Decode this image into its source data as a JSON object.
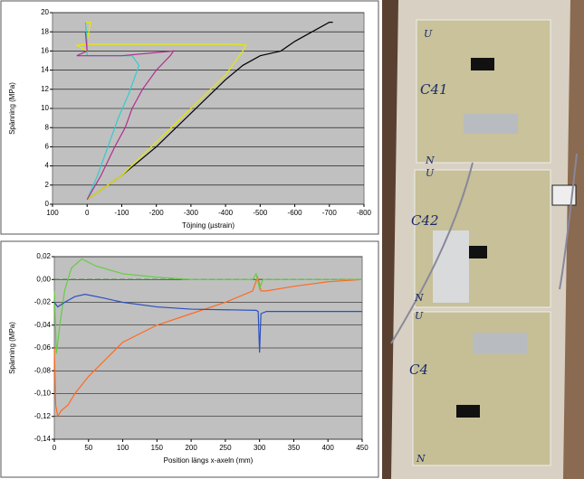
{
  "chart_data": [
    {
      "type": "line",
      "x_label": "Töjning (µstrain)",
      "y_label": "Spänning (MPa)",
      "xlim": [
        100,
        -800
      ],
      "xticks": [
        100,
        0,
        -100,
        -200,
        -300,
        -400,
        -500,
        -600,
        -700,
        -800
      ],
      "ylim": [
        0,
        20
      ],
      "yticks": [
        0,
        2,
        4,
        6,
        8,
        10,
        12,
        14,
        16,
        18,
        20
      ],
      "grid": true,
      "series": [
        {
          "color": "#000000",
          "x": [
            0,
            -100,
            -200,
            -300,
            -400,
            -450,
            -500,
            -560,
            -600,
            -650,
            -700,
            -710
          ],
          "values": [
            0.5,
            3,
            6,
            9.5,
            13,
            14.5,
            15.5,
            16,
            17,
            18,
            19,
            19
          ]
        },
        {
          "color": "#e8e800",
          "x": [
            0,
            -100,
            -200,
            -300,
            -400,
            -450,
            -460,
            -430,
            -200,
            0,
            30,
            0,
            0,
            -10,
            5
          ],
          "values": [
            0.5,
            3,
            6.5,
            10,
            13.5,
            16,
            16.6,
            16.7,
            16.7,
            16.7,
            16.6,
            16,
            17,
            19,
            19
          ]
        },
        {
          "color": "#33cccc",
          "x": [
            0,
            -30,
            -60,
            -90,
            -120,
            -140,
            -150,
            -130,
            -50,
            0,
            0,
            5
          ],
          "values": [
            0.5,
            3,
            6,
            9,
            11.5,
            13.5,
            14.5,
            15.5,
            15.5,
            15.5,
            17,
            19
          ]
        },
        {
          "color": "#b03090",
          "x": [
            0,
            -40,
            -80,
            -110,
            -130,
            -160,
            -200,
            -240,
            -250,
            -100,
            30,
            0,
            5
          ],
          "values": [
            0.5,
            3,
            6,
            8,
            10,
            12,
            14,
            15.5,
            16,
            15.5,
            15.5,
            16,
            18
          ]
        }
      ]
    },
    {
      "type": "line",
      "x_label": "Position längs x-axeln (mm)",
      "y_label": "Spänning (MPa)",
      "xlim": [
        0,
        450
      ],
      "xticks": [
        0,
        50,
        100,
        150,
        200,
        250,
        300,
        350,
        400,
        450
      ],
      "ylim": [
        -0.14,
        0.02
      ],
      "yticks": [
        {
          "value": -0.14,
          "label": "-0,14"
        },
        {
          "value": -0.12,
          "label": "-0,12"
        },
        {
          "value": -0.1,
          "label": "-0,10"
        },
        {
          "value": -0.08,
          "label": "-0,08"
        },
        {
          "value": -0.06,
          "label": "-0,06"
        },
        {
          "value": -0.04,
          "label": "-0,04"
        },
        {
          "value": -0.02,
          "label": "-0,02"
        },
        {
          "value": 0,
          "label": "0,00"
        },
        {
          "value": 0.02,
          "label": "0,02"
        }
      ],
      "grid": true,
      "series": [
        {
          "color": "#2e7d32",
          "dash": true,
          "x": [
            0,
            450
          ],
          "values": [
            0,
            0
          ]
        },
        {
          "color": "#ff6a20",
          "x": [
            0,
            2,
            5,
            10,
            20,
            30,
            50,
            75,
            100,
            150,
            200,
            250,
            290,
            297,
            300,
            302,
            310,
            350,
            400,
            450
          ],
          "values": [
            -0.06,
            -0.11,
            -0.12,
            -0.115,
            -0.11,
            -0.1,
            -0.085,
            -0.07,
            -0.055,
            -0.04,
            -0.03,
            -0.02,
            -0.01,
            0.002,
            -0.004,
            -0.01,
            -0.01,
            -0.006,
            -0.002,
            0
          ]
        },
        {
          "color": "#66cc44",
          "x": [
            0,
            3,
            8,
            15,
            25,
            40,
            60,
            100,
            150,
            200,
            290,
            295,
            300,
            305,
            450
          ],
          "values": [
            -0.01,
            -0.065,
            -0.04,
            -0.01,
            0.01,
            0.018,
            0.012,
            0.005,
            0.002,
            0,
            0,
            0.005,
            -0.008,
            0,
            0
          ]
        },
        {
          "color": "#2a4fc0",
          "x": [
            0,
            5,
            15,
            30,
            45,
            70,
            100,
            150,
            200,
            295,
            298,
            300,
            302,
            310,
            450
          ],
          "values": [
            -0.02,
            -0.024,
            -0.02,
            -0.015,
            -0.013,
            -0.016,
            -0.02,
            -0.024,
            -0.026,
            -0.027,
            -0.028,
            -0.064,
            -0.03,
            -0.028,
            -0.028
          ]
        }
      ]
    }
  ],
  "photo": {
    "labels": [
      "C41",
      "C42",
      "C4",
      "U",
      "N",
      "U",
      "N",
      "U",
      "N"
    ]
  }
}
